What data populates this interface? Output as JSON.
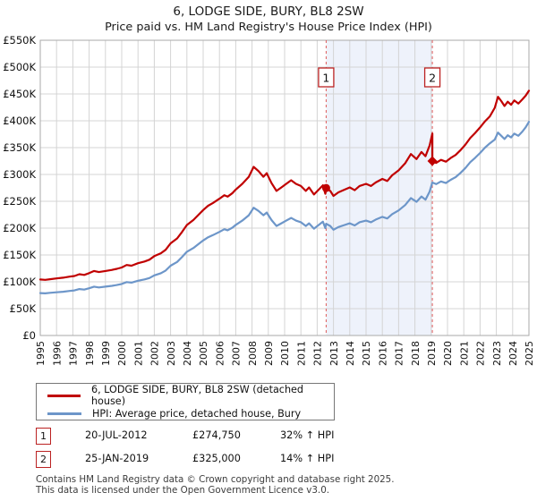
{
  "title": "6, LODGE SIDE, BURY, BL8 2SW",
  "subtitle": "Price paid vs. HM Land Registry's House Price Index (HPI)",
  "legend": {
    "series1": "6, LODGE SIDE, BURY, BL8 2SW (detached house)",
    "series2": "HPI: Average price, detached house, Bury"
  },
  "transactions": [
    {
      "index": "1",
      "date": "20-JUL-2012",
      "price": "£274,750",
      "hpi": "32% ↑ HPI"
    },
    {
      "index": "2",
      "date": "25-JAN-2019",
      "price": "£325,000",
      "hpi": "14% ↑ HPI"
    }
  ],
  "footer": {
    "line1": "Contains HM Land Registry data © Crown copyright and database right 2025.",
    "line2": "This data is licensed under the Open Government Licence v3.0."
  },
  "colors": {
    "property": "#c00000",
    "hpi": "#6d96c9",
    "band": "#eef2fb",
    "dashed": "#e05c5c",
    "grid": "#d4d4d4",
    "border": "#aaaaaa",
    "marker_box_border": "#bb2222",
    "text": "#111111"
  },
  "chart_data": {
    "type": "line",
    "title": "6, LODGE SIDE, BURY, BL8 2SW",
    "subtitle": "Price paid vs. HM Land Registry's House Price Index (HPI)",
    "units": "GBP thousands",
    "grid": true,
    "legend_position": "bottom",
    "x_range": [
      1995,
      2025
    ],
    "y_range_thousands": [
      0,
      550
    ],
    "x_ticks": [
      1995,
      1996,
      1997,
      1998,
      1999,
      2000,
      2001,
      2002,
      2003,
      2004,
      2005,
      2006,
      2007,
      2008,
      2009,
      2010,
      2011,
      2012,
      2013,
      2014,
      2015,
      2016,
      2017,
      2018,
      2019,
      2020,
      2021,
      2022,
      2023,
      2024,
      2025
    ],
    "y_ticks_thousands": [
      0,
      50,
      100,
      150,
      200,
      250,
      300,
      350,
      400,
      450,
      500,
      550
    ],
    "y_tick_labels": [
      "£0",
      "£50K",
      "£100K",
      "£150K",
      "£200K",
      "£250K",
      "£300K",
      "£350K",
      "£400K",
      "£450K",
      "£500K",
      "£550K"
    ],
    "band_years": [
      2012.55,
      2019.07
    ],
    "sales": [
      {
        "label": "1",
        "date": "20-JUL-2012",
        "year": 2012.55,
        "price_gbp": 274750,
        "price_thousands": 274.75,
        "pct_vs_hpi": "32% ↑ HPI",
        "marker": "circle"
      },
      {
        "label": "2",
        "date": "25-JAN-2019",
        "year": 2019.07,
        "price_gbp": 325000,
        "price_thousands": 325,
        "pct_vs_hpi": "14% ↑ HPI",
        "marker": "diamond"
      }
    ],
    "series": [
      {
        "name": "6, LODGE SIDE, BURY, BL8 2SW (detached house)",
        "color": "#c00000",
        "points": [
          [
            1995.0,
            104.3
          ],
          [
            1995.3,
            103.6
          ],
          [
            1995.6,
            104.9
          ],
          [
            1996.0,
            106.3
          ],
          [
            1996.4,
            107.6
          ],
          [
            1996.8,
            109.6
          ],
          [
            1997.1,
            110.9
          ],
          [
            1997.4,
            114.2
          ],
          [
            1997.7,
            112.9
          ],
          [
            1998.0,
            116.2
          ],
          [
            1998.3,
            120.1
          ],
          [
            1998.6,
            118.1
          ],
          [
            1999.0,
            120.1
          ],
          [
            1999.4,
            122.1
          ],
          [
            1999.7,
            124.1
          ],
          [
            2000.0,
            126.7
          ],
          [
            2000.3,
            131.3
          ],
          [
            2000.6,
            130.0
          ],
          [
            2001.0,
            134.6
          ],
          [
            2001.4,
            137.9
          ],
          [
            2001.7,
            141.2
          ],
          [
            2002.0,
            147.8
          ],
          [
            2002.4,
            153.1
          ],
          [
            2002.7,
            159.7
          ],
          [
            2003.0,
            171.6
          ],
          [
            2003.4,
            180.8
          ],
          [
            2003.7,
            192.7
          ],
          [
            2004.0,
            205.9
          ],
          [
            2004.4,
            215.2
          ],
          [
            2004.7,
            224.4
          ],
          [
            2005.0,
            233.6
          ],
          [
            2005.3,
            241.6
          ],
          [
            2005.6,
            246.8
          ],
          [
            2006.0,
            254.8
          ],
          [
            2006.3,
            261.4
          ],
          [
            2006.5,
            258.7
          ],
          [
            2006.8,
            265.3
          ],
          [
            2007.0,
            271.9
          ],
          [
            2007.4,
            282.5
          ],
          [
            2007.8,
            295.7
          ],
          [
            2008.1,
            314.2
          ],
          [
            2008.4,
            306.2
          ],
          [
            2008.7,
            295.7
          ],
          [
            2008.9,
            302.3
          ],
          [
            2009.2,
            283.8
          ],
          [
            2009.5,
            269.3
          ],
          [
            2009.8,
            275.9
          ],
          [
            2010.1,
            282.5
          ],
          [
            2010.4,
            289.1
          ],
          [
            2010.7,
            282.5
          ],
          [
            2011.0,
            278.5
          ],
          [
            2011.3,
            269.3
          ],
          [
            2011.5,
            275.9
          ],
          [
            2011.8,
            262.7
          ],
          [
            2012.1,
            271.9
          ],
          [
            2012.35,
            279.8
          ],
          [
            2012.5,
            264.0
          ],
          [
            2012.55,
            274.75
          ],
          [
            2012.8,
            269.3
          ],
          [
            2013.0,
            260.0
          ],
          [
            2013.3,
            266.6
          ],
          [
            2013.6,
            270.6
          ],
          [
            2014.0,
            275.9
          ],
          [
            2014.3,
            270.6
          ],
          [
            2014.6,
            278.5
          ],
          [
            2015.0,
            282.5
          ],
          [
            2015.3,
            278.5
          ],
          [
            2015.6,
            285.1
          ],
          [
            2016.0,
            291.7
          ],
          [
            2016.3,
            287.8
          ],
          [
            2016.6,
            298.3
          ],
          [
            2017.0,
            307.6
          ],
          [
            2017.4,
            320.8
          ],
          [
            2017.75,
            338.0
          ],
          [
            2018.1,
            328.7
          ],
          [
            2018.4,
            341.9
          ],
          [
            2018.65,
            334.0
          ],
          [
            2018.9,
            353.8
          ],
          [
            2019.0,
            367.0
          ],
          [
            2019.07,
            376.2
          ],
          [
            2019.07,
            325.0
          ],
          [
            2019.3,
            321.5
          ],
          [
            2019.6,
            327.2
          ],
          [
            2019.9,
            323.8
          ],
          [
            2020.2,
            330.6
          ],
          [
            2020.5,
            336.3
          ],
          [
            2020.8,
            345.4
          ],
          [
            2021.1,
            355.7
          ],
          [
            2021.4,
            368.2
          ],
          [
            2021.7,
            377.3
          ],
          [
            2022.0,
            387.6
          ],
          [
            2022.3,
            399.0
          ],
          [
            2022.6,
            408.1
          ],
          [
            2022.9,
            424.1
          ],
          [
            2023.1,
            444.6
          ],
          [
            2023.3,
            436.6
          ],
          [
            2023.5,
            427.5
          ],
          [
            2023.7,
            435.5
          ],
          [
            2023.9,
            429.8
          ],
          [
            2024.1,
            437.8
          ],
          [
            2024.35,
            432.1
          ],
          [
            2024.6,
            440.0
          ],
          [
            2024.8,
            446.9
          ],
          [
            2025.0,
            456.0
          ]
        ]
      },
      {
        "name": "HPI: Average price, detached house, Bury",
        "color": "#6d96c9",
        "points": [
          [
            1995.0,
            79
          ],
          [
            1995.3,
            78.5
          ],
          [
            1995.6,
            79.5
          ],
          [
            1996.0,
            80.5
          ],
          [
            1996.4,
            81.5
          ],
          [
            1996.8,
            83
          ],
          [
            1997.1,
            84
          ],
          [
            1997.4,
            86.5
          ],
          [
            1997.7,
            85.5
          ],
          [
            1998.0,
            88
          ],
          [
            1998.3,
            91
          ],
          [
            1998.6,
            89.5
          ],
          [
            1999.0,
            91
          ],
          [
            1999.4,
            92.5
          ],
          [
            1999.7,
            94
          ],
          [
            2000.0,
            96
          ],
          [
            2000.3,
            99.5
          ],
          [
            2000.6,
            98.5
          ],
          [
            2001.0,
            102
          ],
          [
            2001.4,
            104.5
          ],
          [
            2001.7,
            107
          ],
          [
            2002.0,
            112
          ],
          [
            2002.4,
            116
          ],
          [
            2002.7,
            121
          ],
          [
            2003.0,
            130
          ],
          [
            2003.4,
            137
          ],
          [
            2003.7,
            146
          ],
          [
            2004.0,
            156
          ],
          [
            2004.4,
            163
          ],
          [
            2004.7,
            170
          ],
          [
            2005.0,
            177
          ],
          [
            2005.3,
            183
          ],
          [
            2005.6,
            187
          ],
          [
            2006.0,
            193
          ],
          [
            2006.3,
            198
          ],
          [
            2006.5,
            196
          ],
          [
            2006.8,
            201
          ],
          [
            2007.0,
            206
          ],
          [
            2007.4,
            214
          ],
          [
            2007.8,
            224
          ],
          [
            2008.1,
            238
          ],
          [
            2008.4,
            232
          ],
          [
            2008.7,
            224
          ],
          [
            2008.9,
            229
          ],
          [
            2009.2,
            215
          ],
          [
            2009.5,
            204
          ],
          [
            2009.8,
            209
          ],
          [
            2010.1,
            214
          ],
          [
            2010.4,
            219
          ],
          [
            2010.7,
            214
          ],
          [
            2011.0,
            211
          ],
          [
            2011.3,
            204
          ],
          [
            2011.5,
            209
          ],
          [
            2011.8,
            199
          ],
          [
            2012.1,
            206
          ],
          [
            2012.35,
            212
          ],
          [
            2012.5,
            200
          ],
          [
            2012.55,
            208.1
          ],
          [
            2012.8,
            204
          ],
          [
            2013.0,
            197
          ],
          [
            2013.3,
            202
          ],
          [
            2013.6,
            205
          ],
          [
            2014.0,
            209
          ],
          [
            2014.3,
            205
          ],
          [
            2014.6,
            211
          ],
          [
            2015.0,
            214
          ],
          [
            2015.3,
            211
          ],
          [
            2015.6,
            216
          ],
          [
            2016.0,
            221
          ],
          [
            2016.3,
            218
          ],
          [
            2016.6,
            226
          ],
          [
            2017.0,
            233
          ],
          [
            2017.4,
            243
          ],
          [
            2017.75,
            256
          ],
          [
            2018.1,
            249
          ],
          [
            2018.4,
            259
          ],
          [
            2018.65,
            253
          ],
          [
            2018.9,
            268
          ],
          [
            2019.0,
            278
          ],
          [
            2019.07,
            285
          ],
          [
            2019.3,
            282
          ],
          [
            2019.6,
            287
          ],
          [
            2019.9,
            284
          ],
          [
            2020.2,
            290
          ],
          [
            2020.5,
            295
          ],
          [
            2020.8,
            303
          ],
          [
            2021.1,
            312
          ],
          [
            2021.4,
            323
          ],
          [
            2021.7,
            331
          ],
          [
            2022.0,
            340
          ],
          [
            2022.3,
            350
          ],
          [
            2022.6,
            358
          ],
          [
            2022.9,
            365
          ],
          [
            2023.1,
            378
          ],
          [
            2023.3,
            372
          ],
          [
            2023.5,
            366
          ],
          [
            2023.7,
            373
          ],
          [
            2023.9,
            369
          ],
          [
            2024.1,
            376
          ],
          [
            2024.35,
            372
          ],
          [
            2024.6,
            380
          ],
          [
            2024.8,
            388
          ],
          [
            2025.0,
            398
          ]
        ]
      }
    ]
  }
}
